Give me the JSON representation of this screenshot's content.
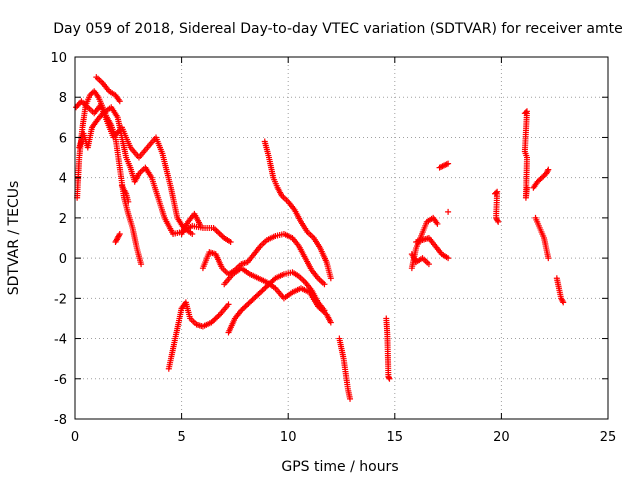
{
  "chart_data": {
    "type": "scatter",
    "title": "Day 059 of 2018, Sidereal Day-to-day VTEC variation (SDTVAR) for receiver amte",
    "xlabel": "GPS time / hours",
    "ylabel": "SDTVAR / TECUs",
    "xlim": [
      0,
      25
    ],
    "ylim": [
      -8,
      10
    ],
    "xticks": [
      "0",
      "5",
      "10",
      "15",
      "20",
      "25"
    ],
    "yticks": [
      "-8",
      "-6",
      "-4",
      "-2",
      "0",
      "2",
      "4",
      "6",
      "8",
      "10"
    ],
    "grid": true,
    "marker": "plus",
    "color": "#ff0000",
    "tracks": [
      [
        [
          0.1,
          3.0
        ],
        [
          0.2,
          5.0
        ],
        [
          0.35,
          6.5
        ],
        [
          0.5,
          7.6
        ],
        [
          0.7,
          8.1
        ],
        [
          0.9,
          8.3
        ],
        [
          1.1,
          8.0
        ],
        [
          1.3,
          7.5
        ],
        [
          1.5,
          7.0
        ],
        [
          1.7,
          6.6
        ],
        [
          1.9,
          6.0
        ],
        [
          2.1,
          4.5
        ],
        [
          2.3,
          3.0
        ],
        [
          2.5,
          2.2
        ],
        [
          2.7,
          1.5
        ],
        [
          2.9,
          0.5
        ],
        [
          3.1,
          -0.3
        ]
      ],
      [
        [
          0.05,
          7.5
        ],
        [
          0.3,
          7.8
        ],
        [
          0.6,
          7.5
        ],
        [
          0.9,
          7.2
        ],
        [
          1.2,
          7.6
        ],
        [
          1.5,
          6.8
        ],
        [
          1.8,
          6.0
        ],
        [
          2.2,
          6.5
        ],
        [
          2.6,
          5.5
        ],
        [
          3.0,
          5.0
        ],
        [
          3.4,
          5.5
        ],
        [
          3.8,
          6.0
        ],
        [
          4.1,
          5.2
        ],
        [
          4.5,
          3.5
        ],
        [
          4.8,
          2.0
        ],
        [
          5.1,
          1.5
        ],
        [
          5.5,
          1.2
        ]
      ],
      [
        [
          0.2,
          5.5
        ],
        [
          0.4,
          6.2
        ],
        [
          0.6,
          5.5
        ],
        [
          0.8,
          6.5
        ],
        [
          1.0,
          6.8
        ],
        [
          1.3,
          7.2
        ],
        [
          1.7,
          7.5
        ],
        [
          2.0,
          7.0
        ],
        [
          2.2,
          6.0
        ],
        [
          2.4,
          5.0
        ],
        [
          2.6,
          4.5
        ],
        [
          2.8,
          3.8
        ],
        [
          3.0,
          4.2
        ],
        [
          3.3,
          4.5
        ],
        [
          3.6,
          4.0
        ],
        [
          3.9,
          3.0
        ],
        [
          4.2,
          2.0
        ],
        [
          4.6,
          1.2
        ],
        [
          5.0,
          1.3
        ],
        [
          5.5,
          1.6
        ],
        [
          6.0,
          1.5
        ],
        [
          6.5,
          1.5
        ],
        [
          7.0,
          1.0
        ],
        [
          7.3,
          0.8
        ]
      ],
      [
        [
          1.0,
          9.0
        ],
        [
          1.3,
          8.7
        ],
        [
          1.6,
          8.3
        ],
        [
          1.9,
          8.1
        ],
        [
          2.1,
          7.8
        ]
      ],
      [
        [
          1.9,
          0.8
        ],
        [
          2.0,
          1.0
        ],
        [
          2.1,
          1.2
        ]
      ],
      [
        [
          2.2,
          3.6
        ],
        [
          2.4,
          3.2
        ],
        [
          2.5,
          2.8
        ]
      ],
      [
        [
          4.4,
          -5.5
        ],
        [
          4.6,
          -4.5
        ],
        [
          4.8,
          -3.5
        ],
        [
          5.0,
          -2.5
        ],
        [
          5.2,
          -2.2
        ],
        [
          5.4,
          -3.0
        ],
        [
          5.7,
          -3.3
        ],
        [
          6.0,
          -3.4
        ],
        [
          6.4,
          -3.2
        ],
        [
          6.8,
          -2.8
        ],
        [
          7.2,
          -2.3
        ]
      ],
      [
        [
          5.0,
          1.2
        ],
        [
          5.3,
          1.8
        ],
        [
          5.6,
          2.2
        ],
        [
          5.9,
          1.6
        ]
      ],
      [
        [
          6.0,
          -0.5
        ],
        [
          6.3,
          0.3
        ],
        [
          6.6,
          0.2
        ],
        [
          6.9,
          -0.5
        ],
        [
          7.2,
          -0.8
        ],
        [
          7.5,
          -0.6
        ],
        [
          7.8,
          -0.3
        ],
        [
          8.1,
          -0.2
        ],
        [
          8.4,
          0.2
        ],
        [
          8.7,
          0.6
        ],
        [
          9.0,
          0.9
        ],
        [
          9.4,
          1.1
        ],
        [
          9.8,
          1.2
        ],
        [
          10.2,
          1.0
        ],
        [
          10.5,
          0.6
        ],
        [
          10.8,
          0.0
        ],
        [
          11.1,
          -0.6
        ],
        [
          11.4,
          -1.0
        ],
        [
          11.7,
          -1.3
        ]
      ],
      [
        [
          7.2,
          -3.7
        ],
        [
          7.5,
          -3.0
        ],
        [
          7.8,
          -2.6
        ],
        [
          8.2,
          -2.2
        ],
        [
          8.6,
          -1.8
        ],
        [
          9.0,
          -1.4
        ],
        [
          9.4,
          -1.0
        ],
        [
          9.8,
          -0.8
        ],
        [
          10.2,
          -0.7
        ],
        [
          10.5,
          -0.9
        ],
        [
          10.8,
          -1.2
        ],
        [
          11.1,
          -1.6
        ],
        [
          11.4,
          -2.2
        ],
        [
          11.7,
          -2.6
        ]
      ],
      [
        [
          7.0,
          -1.3
        ],
        [
          7.4,
          -0.8
        ],
        [
          7.8,
          -0.5
        ],
        [
          8.2,
          -0.8
        ],
        [
          8.6,
          -1.0
        ],
        [
          9.0,
          -1.2
        ],
        [
          9.4,
          -1.5
        ],
        [
          9.8,
          -2.0
        ],
        [
          10.2,
          -1.7
        ],
        [
          10.6,
          -1.5
        ],
        [
          11.0,
          -1.7
        ],
        [
          11.4,
          -2.4
        ],
        [
          11.8,
          -2.8
        ],
        [
          12.0,
          -3.2
        ]
      ],
      [
        [
          8.9,
          5.8
        ],
        [
          9.1,
          5.0
        ],
        [
          9.3,
          4.0
        ],
        [
          9.5,
          3.5
        ],
        [
          9.7,
          3.1
        ],
        [
          10.0,
          2.8
        ],
        [
          10.3,
          2.4
        ],
        [
          10.6,
          1.8
        ],
        [
          10.9,
          1.3
        ],
        [
          11.2,
          1.0
        ],
        [
          11.5,
          0.5
        ],
        [
          11.8,
          -0.2
        ],
        [
          12.0,
          -1.0
        ]
      ],
      [
        [
          12.4,
          -4.0
        ],
        [
          12.6,
          -5.0
        ],
        [
          12.8,
          -6.5
        ],
        [
          12.9,
          -7.0
        ]
      ],
      [
        [
          14.6,
          -3.0
        ],
        [
          14.65,
          -3.8
        ],
        [
          14.7,
          -5.9
        ],
        [
          14.75,
          -6.0
        ]
      ],
      [
        [
          15.8,
          -0.5
        ],
        [
          16.0,
          0.5
        ],
        [
          16.2,
          1.0
        ],
        [
          16.5,
          1.8
        ],
        [
          16.8,
          2.0
        ],
        [
          17.0,
          1.7
        ]
      ],
      [
        [
          15.8,
          0.2
        ],
        [
          16.0,
          -0.2
        ],
        [
          16.3,
          0.0
        ],
        [
          16.6,
          -0.3
        ]
      ],
      [
        [
          16.0,
          0.8
        ],
        [
          16.3,
          0.9
        ],
        [
          16.6,
          1.0
        ],
        [
          16.9,
          0.6
        ],
        [
          17.2,
          0.2
        ],
        [
          17.5,
          0.0
        ]
      ],
      [
        [
          17.1,
          4.5
        ],
        [
          17.3,
          4.6
        ],
        [
          17.5,
          4.7
        ]
      ],
      [
        [
          17.5,
          2.3
        ]
      ],
      [
        [
          19.7,
          3.2
        ],
        [
          19.8,
          3.3
        ],
        [
          19.75,
          2.0
        ],
        [
          19.85,
          1.8
        ]
      ],
      [
        [
          21.1,
          7.2
        ],
        [
          21.2,
          7.3
        ],
        [
          21.1,
          5.3
        ],
        [
          21.2,
          5.0
        ],
        [
          21.15,
          3.0
        ],
        [
          21.2,
          3.5
        ]
      ],
      [
        [
          21.5,
          3.5
        ],
        [
          21.7,
          3.8
        ],
        [
          21.9,
          4.0
        ],
        [
          22.1,
          4.2
        ],
        [
          22.2,
          4.4
        ]
      ],
      [
        [
          21.6,
          2.0
        ],
        [
          21.8,
          1.5
        ],
        [
          22.0,
          1.0
        ],
        [
          22.1,
          0.5
        ],
        [
          22.2,
          0.0
        ]
      ],
      [
        [
          22.6,
          -1.0
        ],
        [
          22.7,
          -1.5
        ],
        [
          22.8,
          -2.0
        ],
        [
          22.9,
          -2.2
        ]
      ]
    ]
  }
}
